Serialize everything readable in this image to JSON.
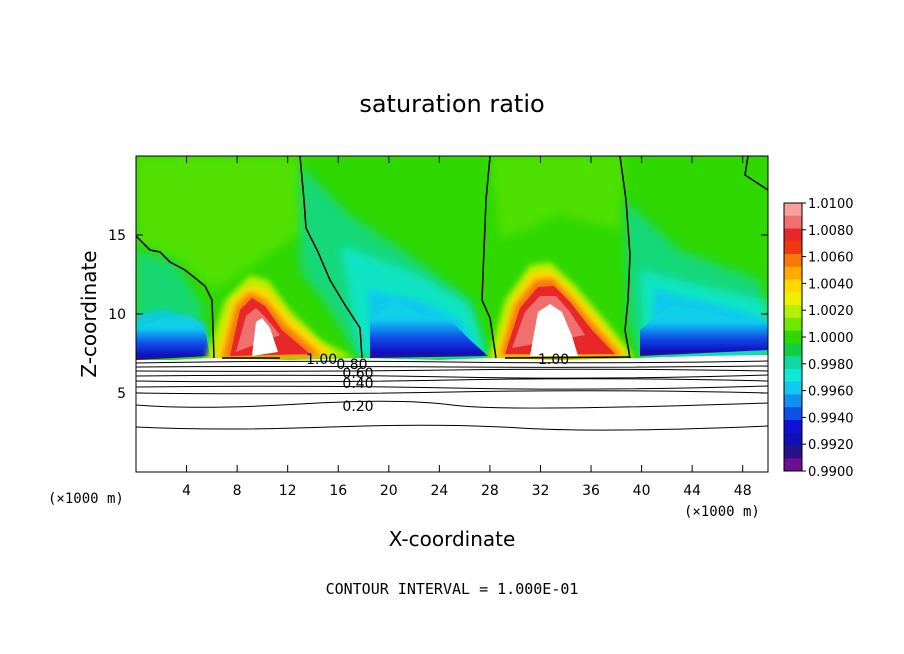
{
  "chart_data": {
    "type": "heatmap",
    "title": "saturation ratio",
    "xlabel": "X-coordinate",
    "ylabel": "Z-coordinate",
    "x_unit": "(×1000 m)",
    "xlim": [
      0,
      50
    ],
    "ylim": [
      0,
      20
    ],
    "x_ticks": [
      4,
      8,
      12,
      16,
      20,
      24,
      28,
      32,
      36,
      40,
      44,
      48
    ],
    "y_ticks": [
      5,
      10,
      15
    ],
    "colorbar": {
      "ticks": [
        "1.0100",
        "1.0080",
        "1.0060",
        "1.0040",
        "1.0020",
        "1.0000",
        "0.9980",
        "0.9960",
        "0.9940",
        "0.9920",
        "0.9900"
      ],
      "colors": [
        "#f7a0a0",
        "#f07070",
        "#e82828",
        "#ee3a10",
        "#f87808",
        "#ffaa00",
        "#ffd800",
        "#eef000",
        "#b6ef00",
        "#6ee800",
        "#2ed800",
        "#10d040",
        "#10d8a0",
        "#10e8d8",
        "#10c8f0",
        "#1090f0",
        "#1050e8",
        "#1010d8",
        "#1010b8",
        "#2a108a",
        "#6a1090"
      ]
    },
    "contour_labels": [
      "1.00",
      "1.00",
      "0.80",
      "0.60",
      "0.40",
      "0.20"
    ],
    "footer": "CONTOUR INTERVAL = 1.000E-01"
  }
}
